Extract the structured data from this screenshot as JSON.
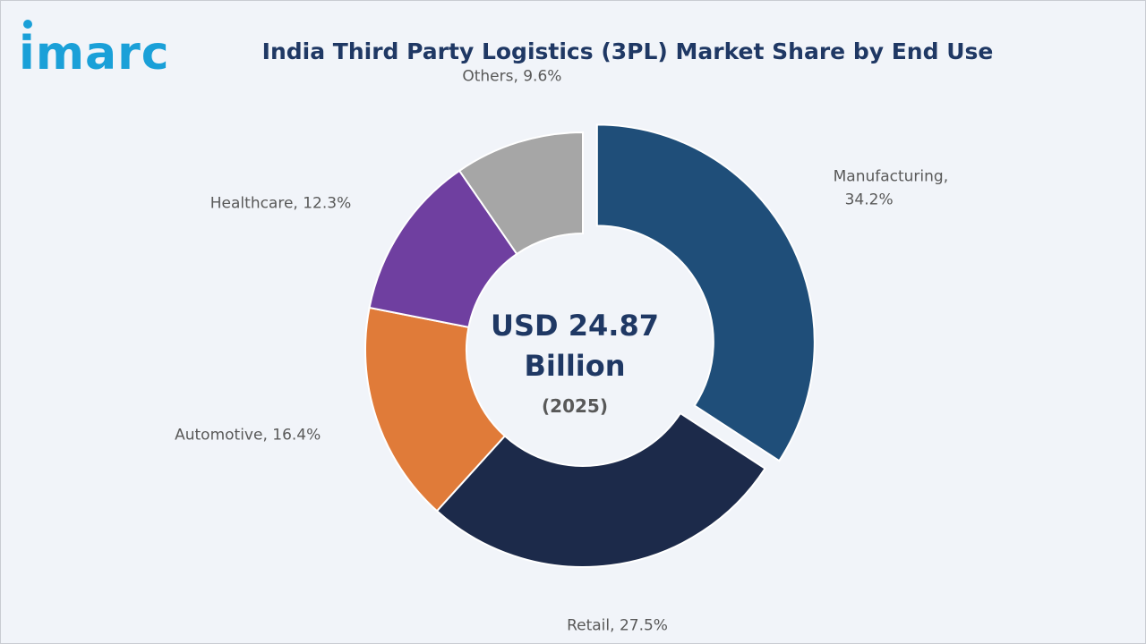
{
  "brand": {
    "name": "imarc",
    "color": "#1aa0d8"
  },
  "chart_data": {
    "type": "pie",
    "variant": "donut",
    "title": "India Third Party Logistics (3PL) Market Share by End Use",
    "center": {
      "value": "USD 24.87",
      "unit": "Billion",
      "year": "(2025)"
    },
    "slices": [
      {
        "label": "Manufacturing",
        "display": [
          "Manufacturing,",
          "34.2%"
        ],
        "value": 34.2,
        "color": "#1f4e79",
        "exploded": true
      },
      {
        "label": "Retail",
        "display": [
          "Retail, 27.5%"
        ],
        "value": 27.5,
        "color": "#1c2a4a",
        "exploded": false
      },
      {
        "label": "Automotive",
        "display": [
          "Automotive, 16.4%"
        ],
        "value": 16.4,
        "color": "#e07b39",
        "exploded": false
      },
      {
        "label": "Healthcare",
        "display": [
          "Healthcare, 12.3%"
        ],
        "value": 12.3,
        "color": "#6f3fa0",
        "exploded": false
      },
      {
        "label": "Others",
        "display": [
          "Others, 9.6%"
        ],
        "value": 9.6,
        "color": "#a6a6a6",
        "exploded": false
      }
    ]
  }
}
